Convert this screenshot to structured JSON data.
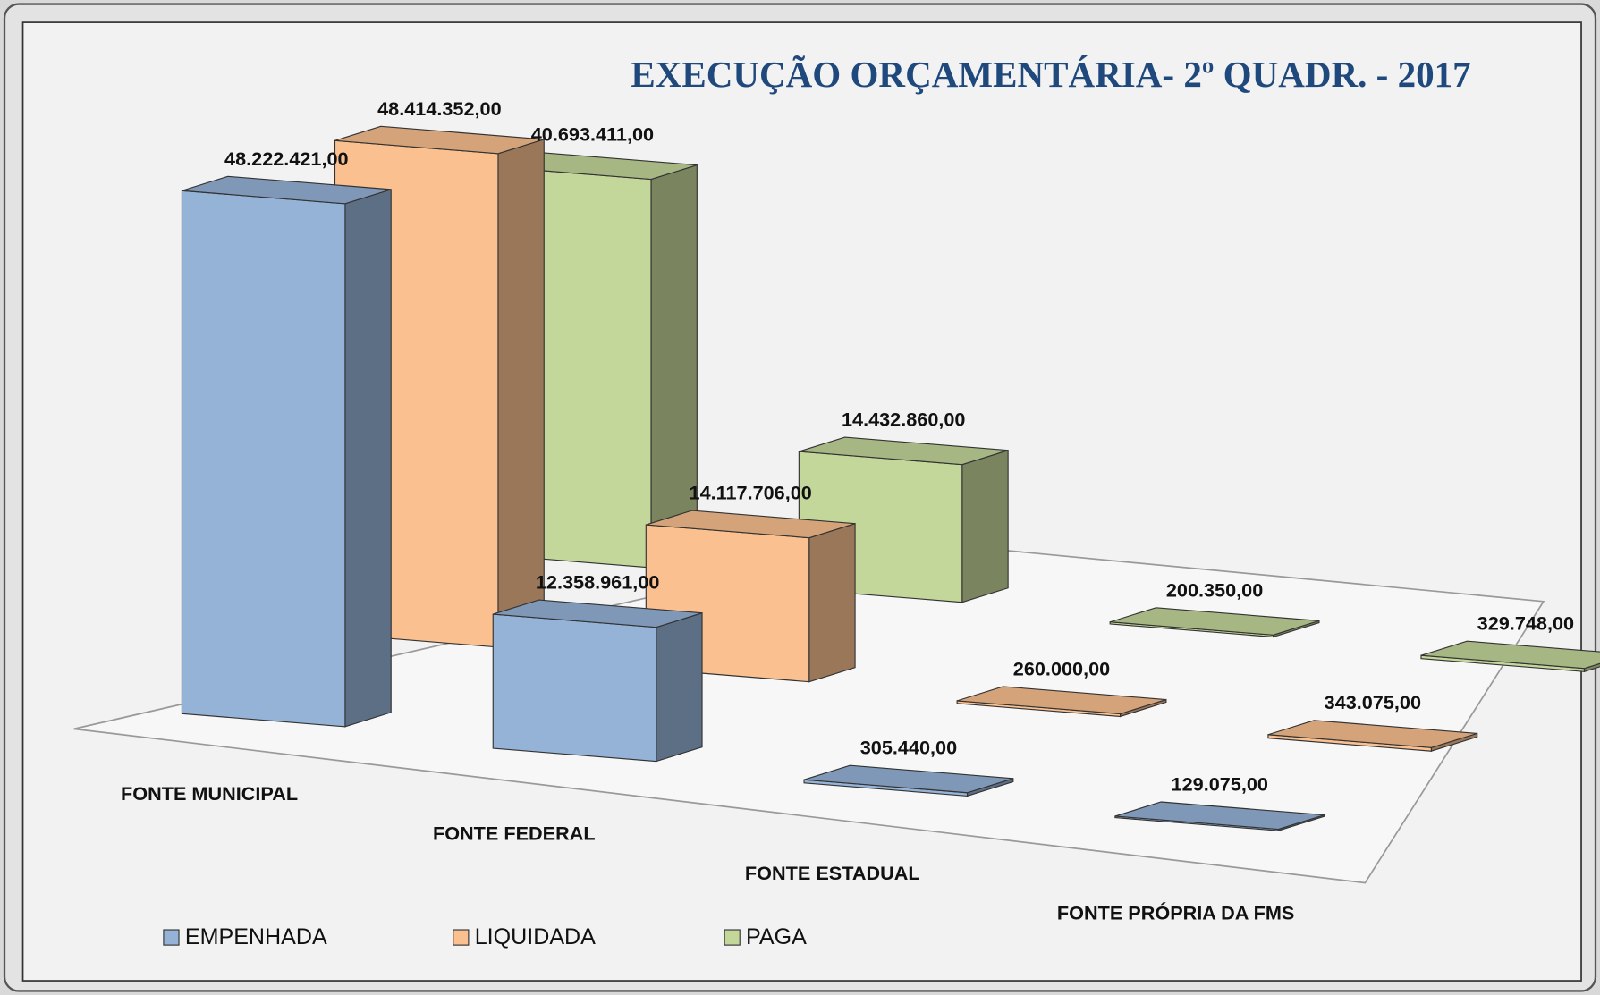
{
  "chart_data": {
    "type": "bar3d",
    "title": "EXECUÇÃO ORÇAMENTÁRIA- 2º QUADR. - 2017",
    "categories": [
      "FONTE MUNICIPAL",
      "FONTE FEDERAL",
      "FONTE ESTADUAL",
      "FONTE PRÓPRIA DA FMS"
    ],
    "series": [
      {
        "name": "EMPENHADA",
        "color": "#95b3d7",
        "values": [
          48222421,
          12358961,
          305440,
          129075
        ],
        "value_labels": [
          "48.222.421,00",
          "12.358.961,00",
          "305.440,00",
          "129.075,00"
        ]
      },
      {
        "name": "LIQUIDADA",
        "color": "#fac090",
        "values": [
          48414352,
          14117706,
          260000,
          343075
        ],
        "value_labels": [
          "48.414.352,00",
          "14.117.706,00",
          "260.000,00",
          "343.075,00"
        ]
      },
      {
        "name": "PAGA",
        "color": "#c4d79b",
        "values": [
          40693411,
          14432860,
          200350,
          329748
        ],
        "value_labels": [
          "40.693.411,00",
          "14.432.860,00",
          "200.350,00",
          "329.748,00"
        ]
      }
    ],
    "legend": "bottom-left"
  }
}
